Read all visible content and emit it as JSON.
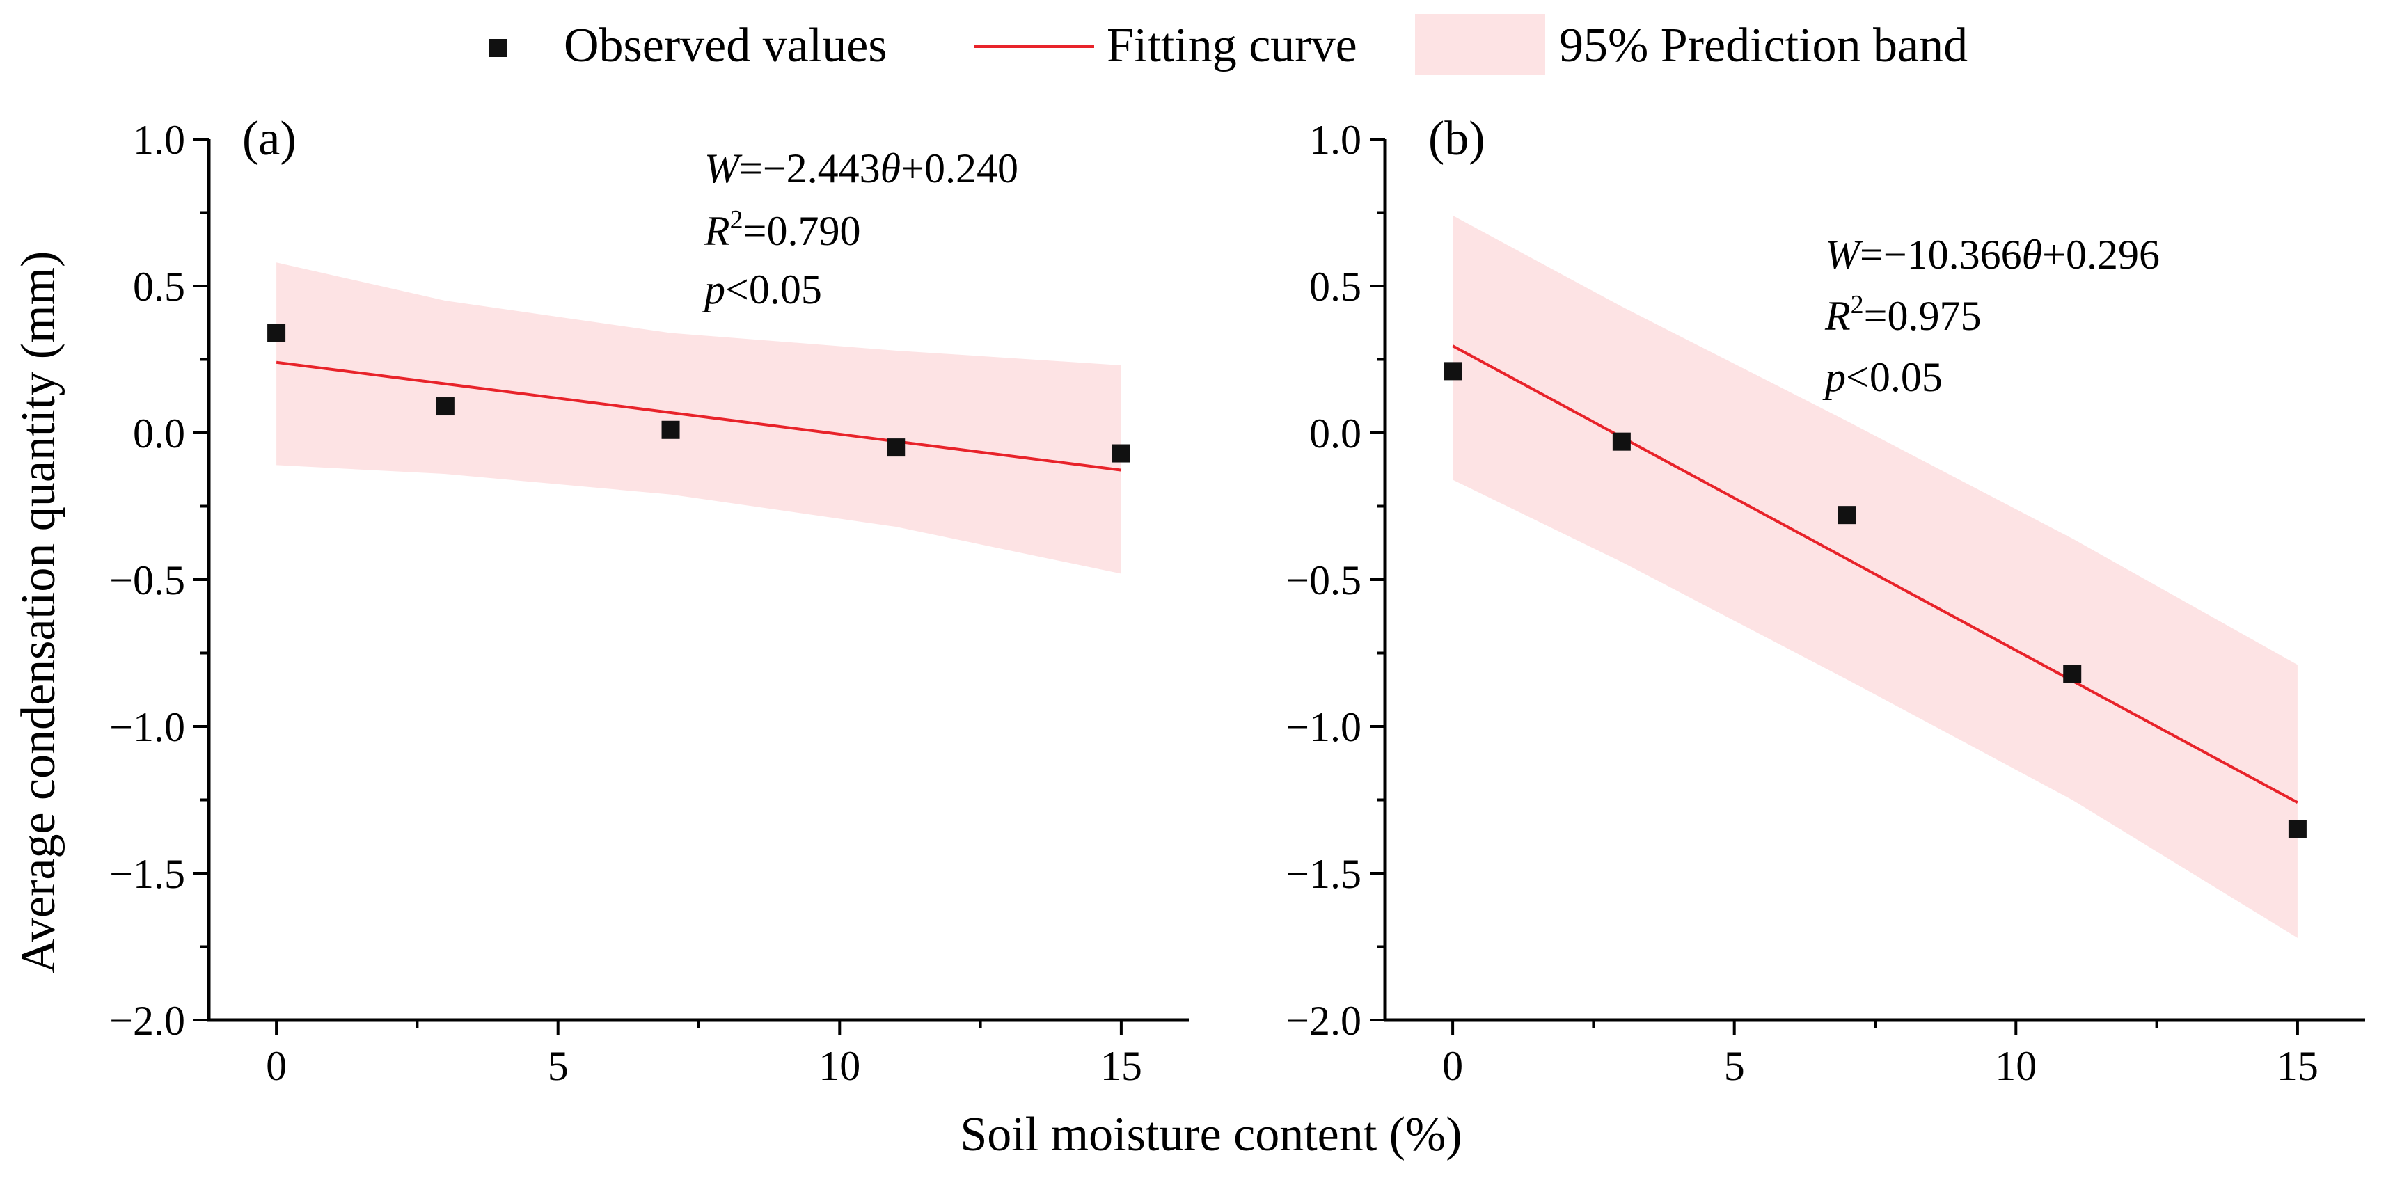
{
  "legend": {
    "items": [
      {
        "label": "Observed values",
        "kind": "marker"
      },
      {
        "label": "Fitting curve",
        "kind": "line"
      },
      {
        "label": "95% Prediction band",
        "kind": "band"
      }
    ]
  },
  "axes": {
    "xlabel": "Soil moisture content (%)",
    "ylabel": "Average condensation quantity (mm)"
  },
  "colors": {
    "marker": "#111111",
    "fit": "#e8232a",
    "band": "#fde3e4",
    "axis": "#000000"
  },
  "chart_data": [
    {
      "type": "scatter",
      "panel_label": "(a)",
      "x": [
        0,
        3,
        7,
        11,
        15
      ],
      "y": [
        0.34,
        0.09,
        0.01,
        -0.05,
        -0.07
      ],
      "fit": {
        "x": [
          0,
          15
        ],
        "y": [
          0.24,
          -0.127
        ]
      },
      "band": {
        "x": [
          0,
          3,
          7,
          11,
          15
        ],
        "upper": [
          0.58,
          0.45,
          0.34,
          0.28,
          0.23
        ],
        "lower": [
          -0.11,
          -0.14,
          -0.21,
          -0.32,
          -0.48
        ]
      },
      "annotation": {
        "line1": {
          "v": "W",
          "rest": "=−2.443",
          "v2": "θ",
          "rest2": "+0.240"
        },
        "line2": {
          "v": "R",
          "sup": "2",
          "rest": "=0.790"
        },
        "line3": {
          "v": "p",
          "rest": "<0.05"
        }
      },
      "xlim": [
        -1.2,
        16.2
      ],
      "ylim": [
        -2.0,
        1.0
      ],
      "xticks": [
        0,
        5,
        10,
        15
      ],
      "xtick_labels": [
        "0",
        "5",
        "10",
        "15"
      ],
      "yticks": [
        1.0,
        0.5,
        0.0,
        -0.5,
        -1.0,
        -1.5,
        -2.0
      ],
      "ytick_labels": [
        "1.0",
        "0.5",
        "0.0",
        "−0.5",
        "−1.0",
        "−1.5",
        "−2.0"
      ]
    },
    {
      "type": "scatter",
      "panel_label": "(b)",
      "x": [
        0,
        3,
        7,
        11,
        15
      ],
      "y": [
        0.21,
        -0.03,
        -0.28,
        -0.82,
        -1.35
      ],
      "fit": {
        "x": [
          0,
          15
        ],
        "y": [
          0.296,
          -1.259
        ]
      },
      "band": {
        "x": [
          0,
          3,
          7,
          11,
          15
        ],
        "upper": [
          0.74,
          0.43,
          0.04,
          -0.36,
          -0.79
        ],
        "lower": [
          -0.16,
          -0.44,
          -0.84,
          -1.25,
          -1.72
        ]
      },
      "annotation": {
        "line1": {
          "v": "W",
          "rest": "=−10.366",
          "v2": "θ",
          "rest2": "+0.296"
        },
        "line2": {
          "v": "R",
          "sup": "2",
          "rest": "=0.975"
        },
        "line3": {
          "v": "p",
          "rest": "<0.05"
        }
      },
      "xlim": [
        -1.2,
        16.2
      ],
      "ylim": [
        -2.0,
        1.0
      ],
      "xticks": [
        0,
        5,
        10,
        15
      ],
      "xtick_labels": [
        "0",
        "5",
        "10",
        "15"
      ],
      "yticks": [
        1.0,
        0.5,
        0.0,
        -0.5,
        -1.0,
        -1.5,
        -2.0
      ],
      "ytick_labels": [
        "1.0",
        "0.5",
        "0.0",
        "−0.5",
        "−1.0",
        "−1.5",
        "−2.0"
      ]
    }
  ]
}
